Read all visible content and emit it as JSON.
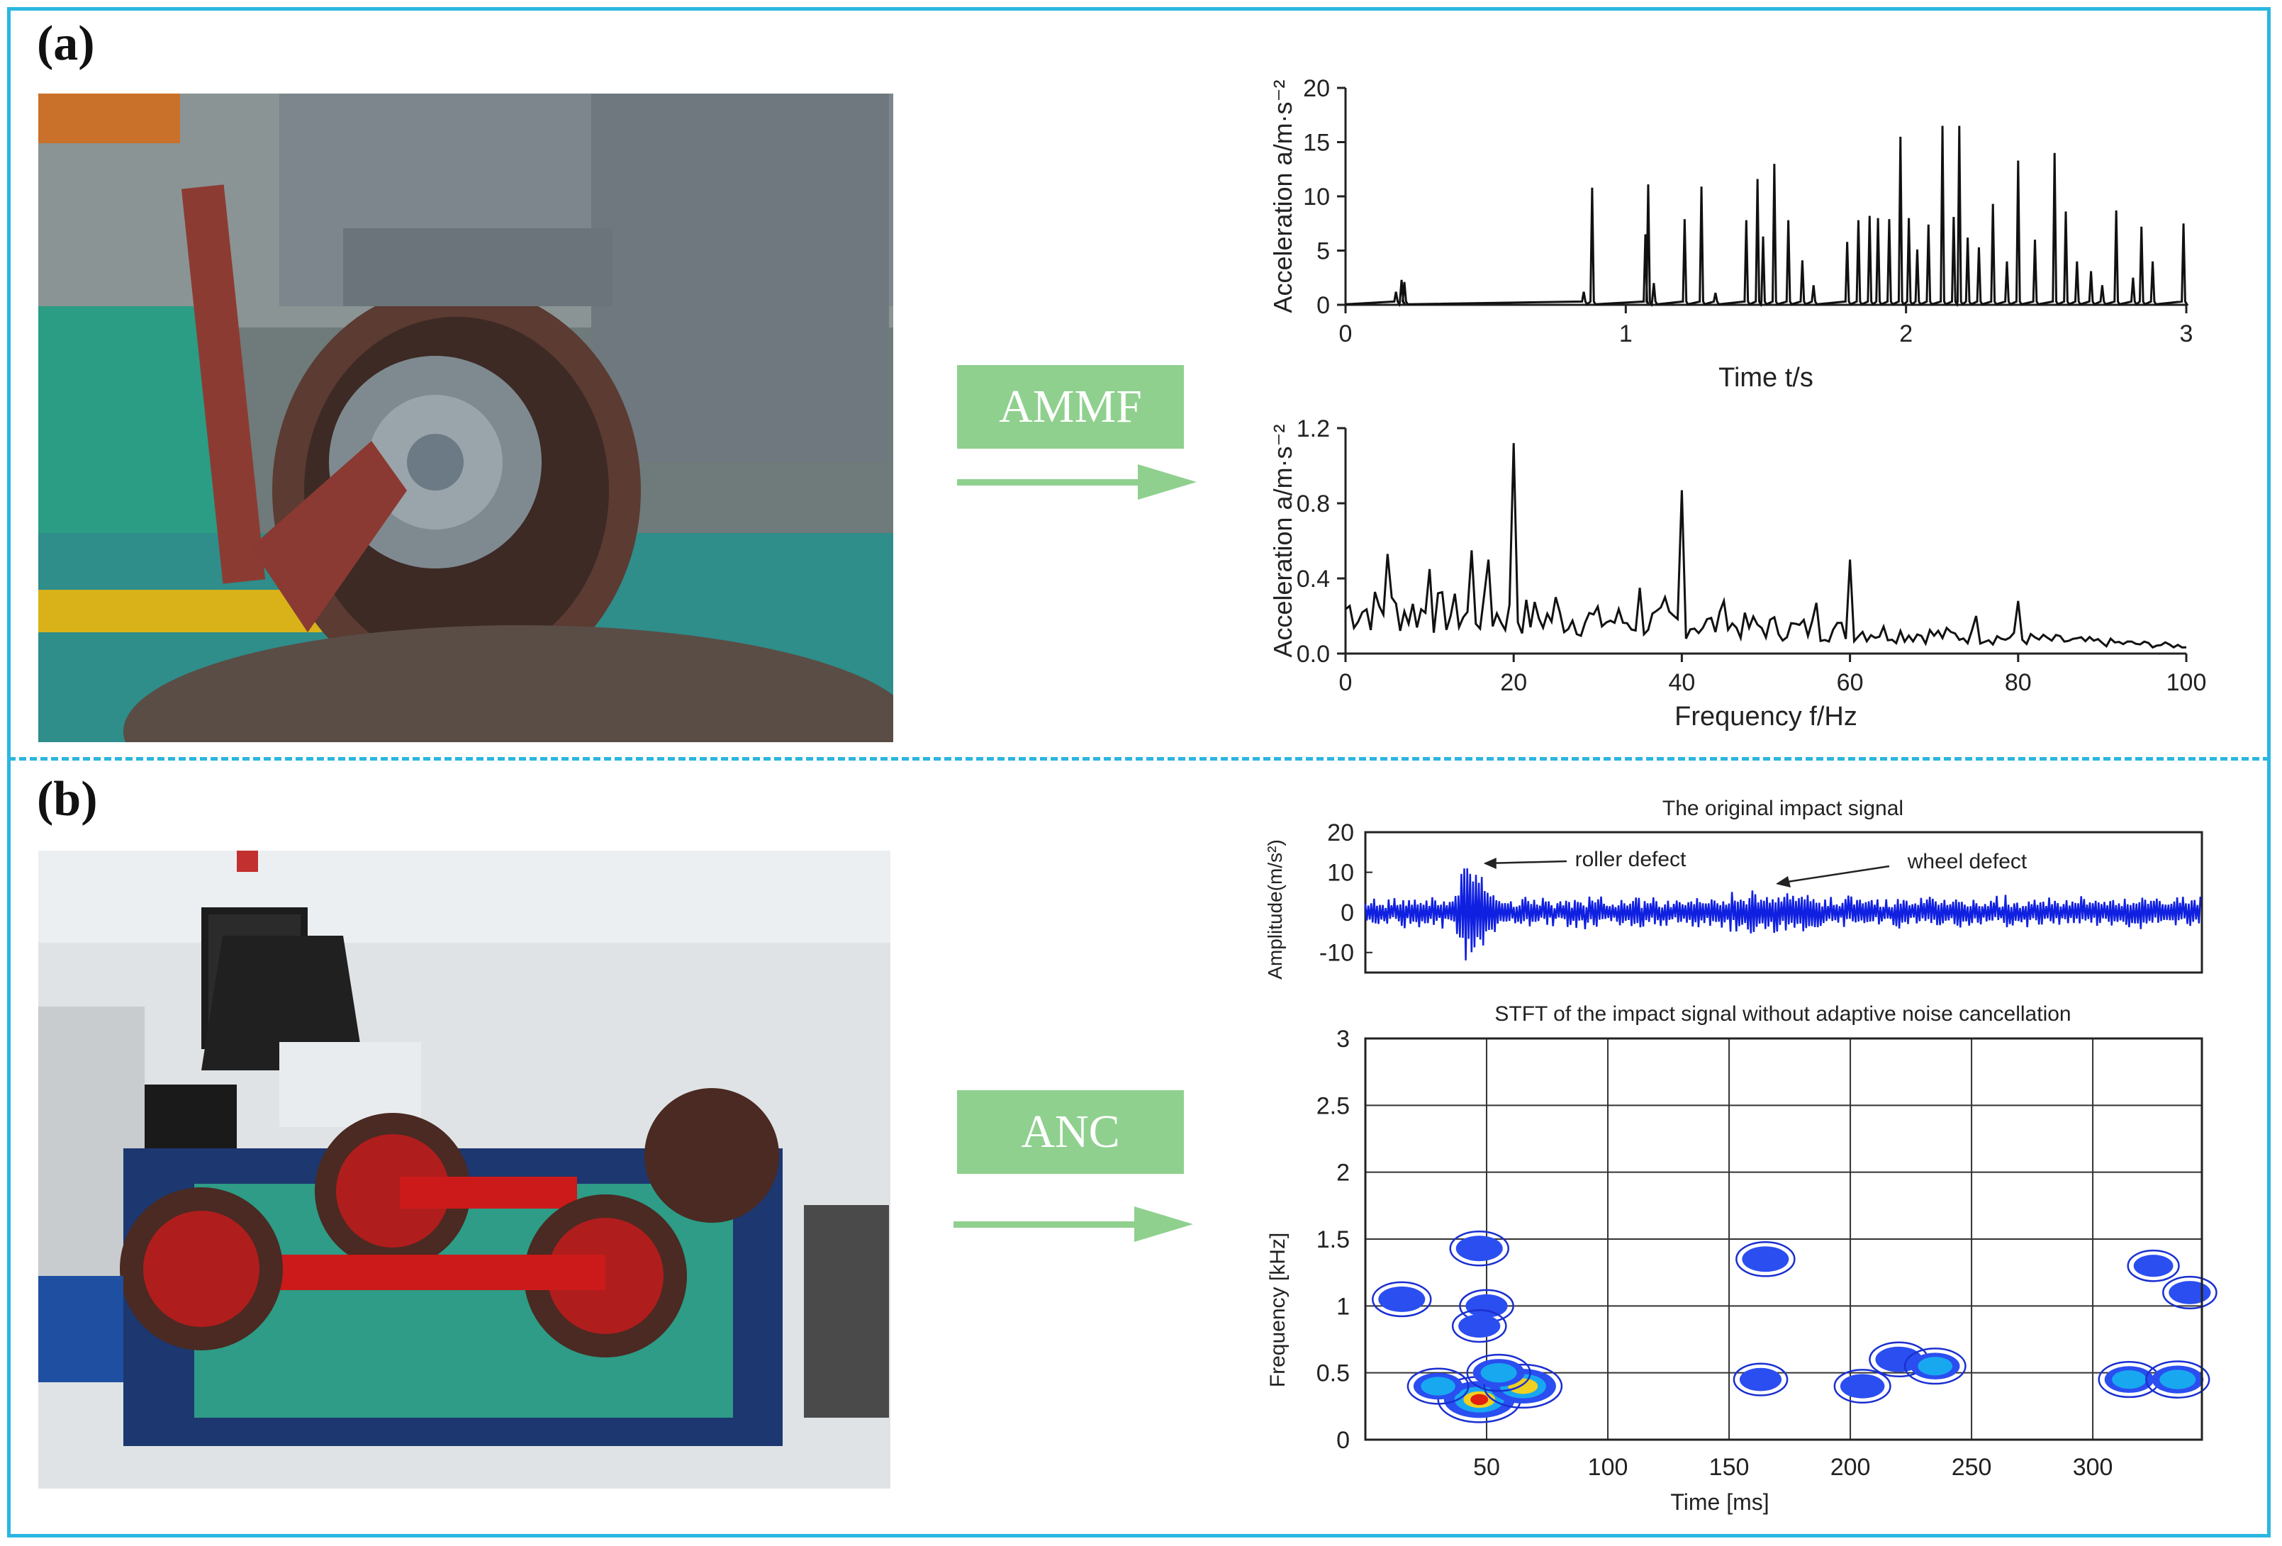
{
  "panels": {
    "a": {
      "label": "(a)",
      "method": "AMMF"
    },
    "b": {
      "label": "(b)",
      "method": "ANC"
    }
  },
  "colors": {
    "frame": "#2bb6e0",
    "arrow": "#8fd08f",
    "signal": "#1020e0",
    "line": "#111111"
  },
  "chart_data": [
    {
      "id": "time-acceleration",
      "type": "line",
      "title": "",
      "xlabel": "Time t/s",
      "ylabel": "Acceleration a/m·s⁻²",
      "xlim": [
        0,
        3
      ],
      "ylim": [
        0,
        20
      ],
      "xticks": [
        "0",
        "1",
        "2",
        "3"
      ],
      "yticks": [
        "0",
        "5",
        "10",
        "15",
        "20"
      ],
      "series": [
        {
          "peaks_x": [
            0.18,
            0.2,
            0.21,
            0.85,
            0.88,
            1.07,
            1.08,
            1.1,
            1.21,
            1.27,
            1.32,
            1.43,
            1.47,
            1.49,
            1.53,
            1.58,
            1.63,
            1.67,
            1.79,
            1.83,
            1.87,
            1.9,
            1.94,
            1.98,
            2.01,
            2.04,
            2.08,
            2.13,
            2.17,
            2.19,
            2.22,
            2.26,
            2.31,
            2.36,
            2.4,
            2.46,
            2.53,
            2.57,
            2.61,
            2.66,
            2.7,
            2.75,
            2.81,
            2.84,
            2.88,
            2.99
          ],
          "peaks_y": [
            1.2,
            2.3,
            2.1,
            1.2,
            10.8,
            6.5,
            11.1,
            2.0,
            7.9,
            10.9,
            1.1,
            7.8,
            11.6,
            6.3,
            13.0,
            7.8,
            4.1,
            1.8,
            5.8,
            7.8,
            8.2,
            8.0,
            7.9,
            15.5,
            8.0,
            5.1,
            7.4,
            16.5,
            8.1,
            16.5,
            6.2,
            5.3,
            9.3,
            4.0,
            13.3,
            6.0,
            14.0,
            8.6,
            4.0,
            3.1,
            1.8,
            8.7,
            2.5,
            7.2,
            4.0,
            7.5
          ]
        }
      ]
    },
    {
      "id": "frequency-acceleration",
      "type": "line",
      "title": "",
      "xlabel": "Frequency f/Hz",
      "ylabel": "Acceleration a/m·s⁻²",
      "xlim": [
        0,
        100
      ],
      "ylim": [
        0,
        1.2
      ],
      "xticks": [
        "0",
        "20",
        "40",
        "60",
        "80",
        "100"
      ],
      "yticks": [
        "0.0",
        "0.4",
        "0.8",
        "1.2"
      ],
      "series": [
        {
          "peaks_x": [
            5,
            10,
            15,
            17,
            20,
            25,
            30,
            35,
            38,
            40,
            45,
            56,
            60,
            75,
            80
          ],
          "peaks_y": [
            0.53,
            0.45,
            0.55,
            0.5,
            1.12,
            0.3,
            0.25,
            0.35,
            0.3,
            0.87,
            0.28,
            0.27,
            0.5,
            0.2,
            0.28
          ]
        }
      ]
    },
    {
      "id": "original-impact-signal",
      "type": "line",
      "title": "The original impact signal",
      "xlabel": "",
      "ylabel": "Amplitude(m/s²)",
      "xlim": [
        0,
        345
      ],
      "ylim": [
        -15,
        20
      ],
      "yticks": [
        "20",
        "10",
        "0",
        "-10"
      ],
      "annotations": [
        {
          "text": "roller defect",
          "x": 47,
          "y": 12
        },
        {
          "text": "wheel defect",
          "x": 163,
          "y": 8
        }
      ],
      "series": [
        {
          "name": "",
          "bursts_x": [
            42,
            44,
            47,
            50,
            160,
            165,
            170,
            320,
            335
          ],
          "bursts_y": [
            14,
            -12.5,
            13.5,
            -9,
            6,
            -5,
            5,
            5,
            4
          ]
        }
      ]
    },
    {
      "id": "stft-map",
      "type": "heatmap",
      "title": "STFT of the impact signal without adaptive noise cancellation",
      "xlabel": "Time [ms]",
      "ylabel": "Frequency [kHz]",
      "xlim": [
        0,
        345
      ],
      "ylim": [
        0,
        3
      ],
      "xticks": [
        "50",
        "100",
        "150",
        "200",
        "250",
        "300"
      ],
      "yticks": [
        "0",
        "0.5",
        "1",
        "1.5",
        "2",
        "2.5",
        "3"
      ],
      "blobs": [
        {
          "t": 47,
          "f": 1.43,
          "intensity": 0.5
        },
        {
          "t": 50,
          "f": 1.0,
          "intensity": 0.4
        },
        {
          "t": 47,
          "f": 0.85,
          "intensity": 0.4
        },
        {
          "t": 15,
          "f": 1.05,
          "intensity": 0.5
        },
        {
          "t": 47,
          "f": 0.3,
          "intensity": 1.0
        },
        {
          "t": 65,
          "f": 0.4,
          "intensity": 0.9
        },
        {
          "t": 30,
          "f": 0.4,
          "intensity": 0.55
        },
        {
          "t": 55,
          "f": 0.5,
          "intensity": 0.6
        },
        {
          "t": 165,
          "f": 1.35,
          "intensity": 0.5
        },
        {
          "t": 163,
          "f": 0.45,
          "intensity": 0.4
        },
        {
          "t": 220,
          "f": 0.6,
          "intensity": 0.5
        },
        {
          "t": 235,
          "f": 0.55,
          "intensity": 0.55
        },
        {
          "t": 205,
          "f": 0.4,
          "intensity": 0.45
        },
        {
          "t": 315,
          "f": 0.45,
          "intensity": 0.55
        },
        {
          "t": 335,
          "f": 0.45,
          "intensity": 0.6
        },
        {
          "t": 340,
          "f": 1.1,
          "intensity": 0.4
        },
        {
          "t": 325,
          "f": 1.3,
          "intensity": 0.35
        }
      ]
    }
  ]
}
